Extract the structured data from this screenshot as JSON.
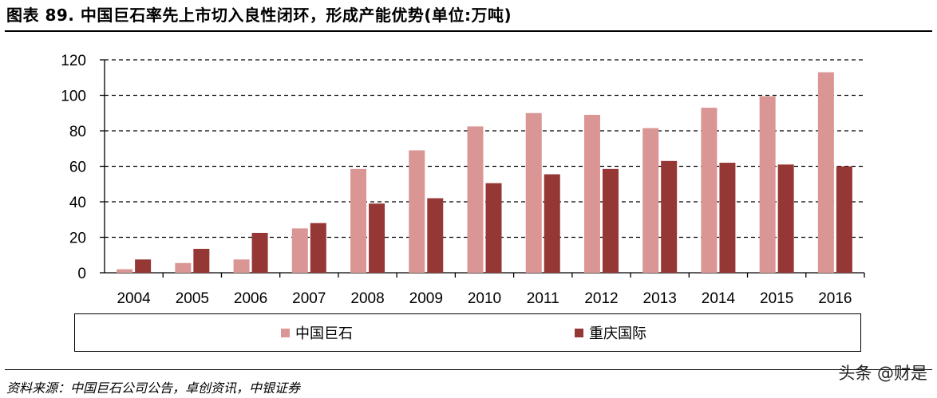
{
  "title": "图表 89. 中国巨石率先上市切入良性闭环，形成产能优势(单位:万吨)",
  "source": "资料来源：中国巨石公司公告，卓创资讯，中银证券",
  "watermark": "头条 @财是",
  "colors": {
    "series1": "#d99694",
    "series2": "#953735",
    "grid": "#000000"
  },
  "chart_data": {
    "type": "bar",
    "title": "",
    "xlabel": "",
    "ylabel": "",
    "ylim": [
      0,
      120
    ],
    "yticks": [
      0,
      20,
      40,
      60,
      80,
      100,
      120
    ],
    "grid": true,
    "legend_position": "bottom",
    "categories": [
      "2004",
      "2005",
      "2006",
      "2007",
      "2008",
      "2009",
      "2010",
      "2011",
      "2012",
      "2013",
      "2014",
      "2015",
      "2016"
    ],
    "series": [
      {
        "name": "中国巨石",
        "values": [
          2,
          5.5,
          7.5,
          25,
          58.5,
          69,
          82.5,
          90,
          89,
          81.5,
          93,
          99.5,
          113
        ]
      },
      {
        "name": "重庆国际",
        "values": [
          7.5,
          13.5,
          22.5,
          28,
          39,
          42,
          50.5,
          55.5,
          58.5,
          63,
          62,
          61,
          60
        ]
      }
    ]
  }
}
